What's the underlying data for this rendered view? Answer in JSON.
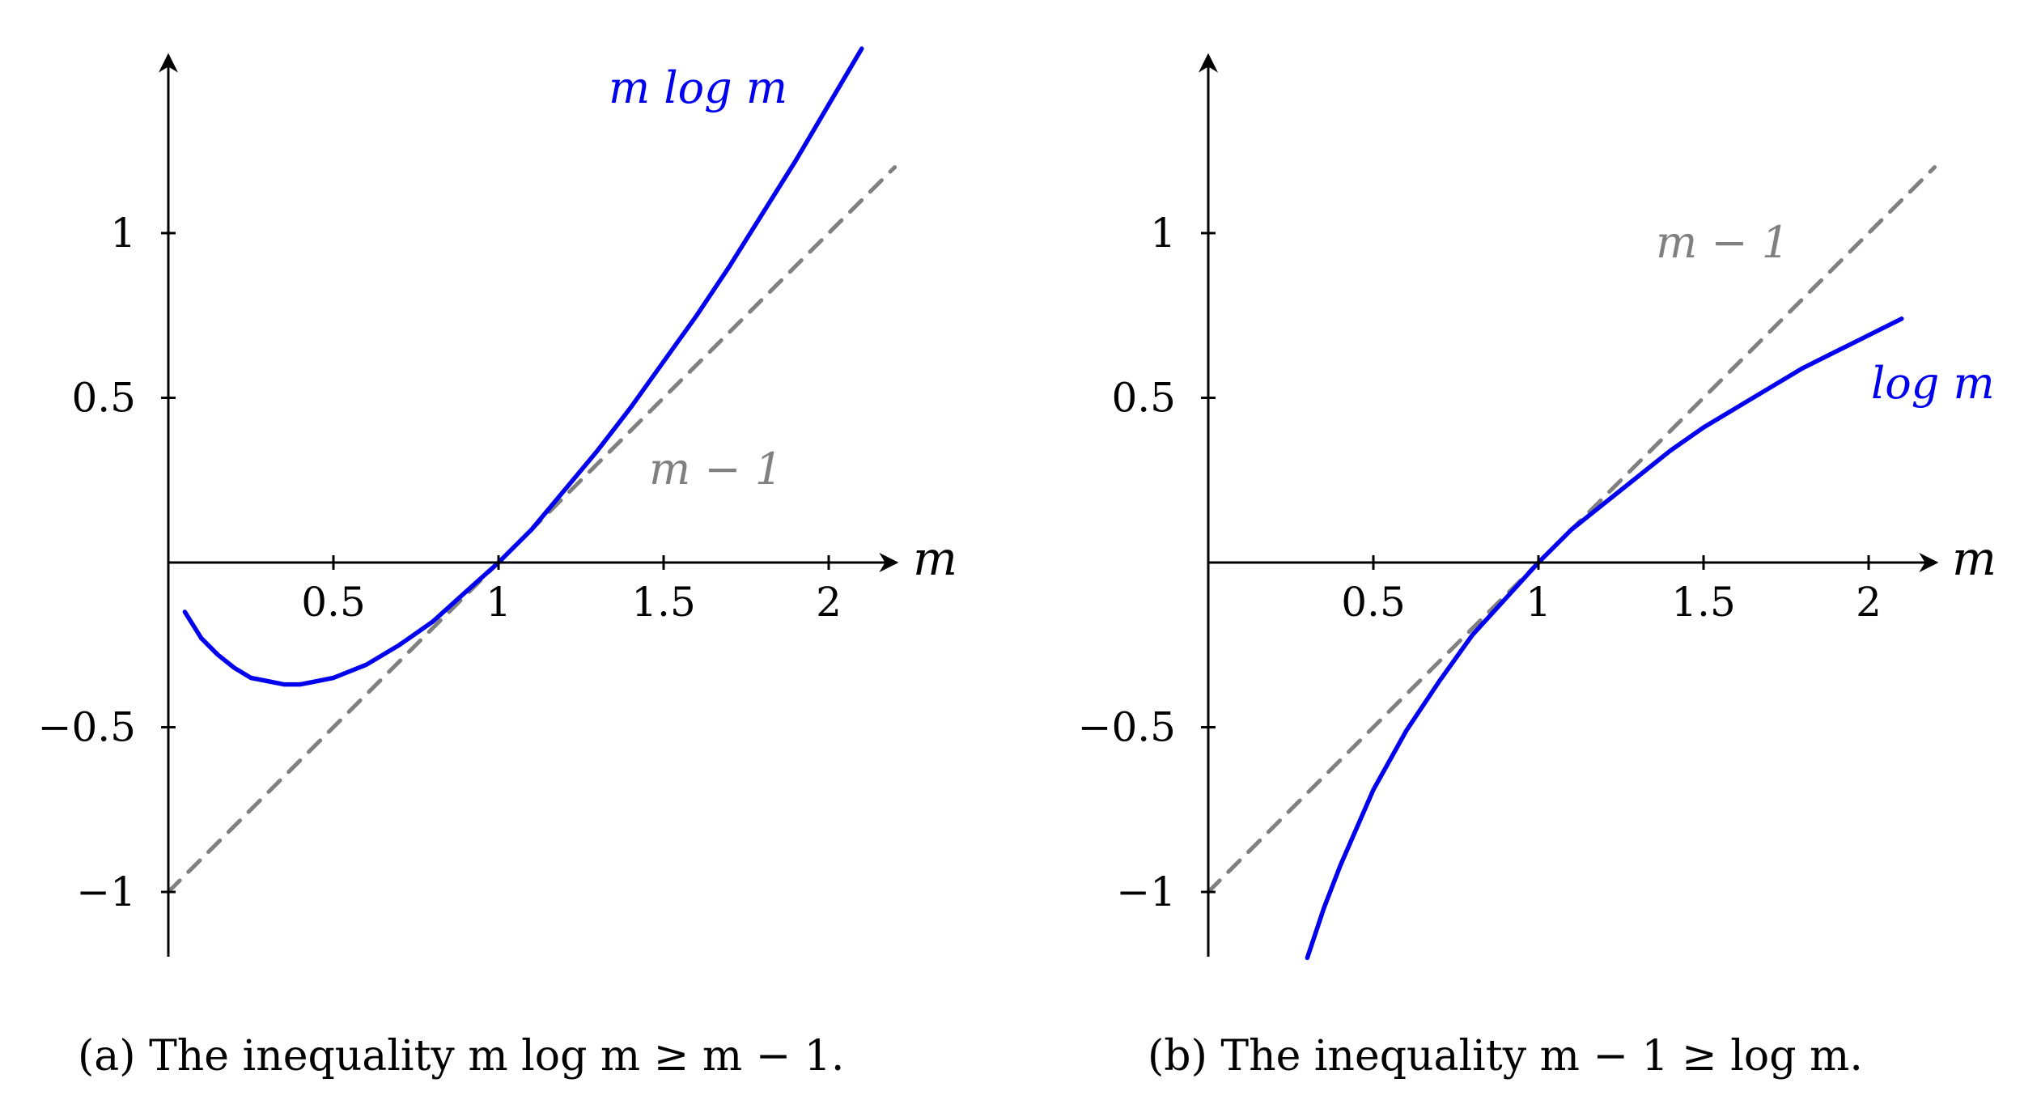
{
  "colors": {
    "curve": "#0000ee",
    "reference": "#808080",
    "axis": "#000000",
    "background": "#ffffff"
  },
  "chart_data": [
    {
      "type": "line",
      "caption": "(a) The inequality m log m ≥ m − 1.",
      "xlabel": "m",
      "ylabel": "",
      "xlim": [
        0,
        2.2
      ],
      "ylim": [
        -1.2,
        1.5
      ],
      "xticks": [
        0.5,
        1,
        1.5,
        2
      ],
      "xtick_labels": [
        "0.5",
        "1",
        "1.5",
        "2"
      ],
      "yticks": [
        1,
        0.5,
        -0.5,
        -1
      ],
      "ytick_labels": [
        "1",
        "0.5",
        "−0.5",
        "−1"
      ],
      "grid": false,
      "series": [
        {
          "name": "m log m",
          "style": "solid",
          "color": "#0000ee",
          "x": [
            0.05,
            0.1,
            0.15,
            0.2,
            0.25,
            0.3,
            0.35,
            0.4,
            0.5,
            0.6,
            0.7,
            0.8,
            0.9,
            1.0,
            1.1,
            1.2,
            1.3,
            1.4,
            1.5,
            1.6,
            1.7,
            1.8,
            1.9,
            2.0,
            2.1
          ],
          "y": [
            -0.15,
            -0.23,
            -0.28,
            -0.32,
            -0.35,
            -0.36,
            -0.37,
            -0.37,
            -0.35,
            -0.31,
            -0.25,
            -0.18,
            -0.09,
            0.0,
            0.1,
            0.22,
            0.34,
            0.47,
            0.61,
            0.75,
            0.9,
            1.06,
            1.22,
            1.39,
            1.56
          ]
        },
        {
          "name": "m − 1",
          "style": "dashed",
          "color": "#808080",
          "x": [
            0,
            2.2
          ],
          "y": [
            -1,
            1.2
          ]
        }
      ]
    },
    {
      "type": "line",
      "caption": "(b) The inequality m − 1 ≥ log m.",
      "xlabel": "m",
      "ylabel": "",
      "xlim": [
        0,
        2.2
      ],
      "ylim": [
        -1.2,
        1.5
      ],
      "xticks": [
        0.5,
        1,
        1.5,
        2
      ],
      "xtick_labels": [
        "0.5",
        "1",
        "1.5",
        "2"
      ],
      "yticks": [
        1,
        0.5,
        -0.5,
        -1
      ],
      "ytick_labels": [
        "1",
        "0.5",
        "−0.5",
        "−1"
      ],
      "grid": false,
      "series": [
        {
          "name": "log m",
          "style": "solid",
          "color": "#0000ee",
          "x": [
            0.3,
            0.35,
            0.4,
            0.5,
            0.6,
            0.7,
            0.8,
            0.9,
            1.0,
            1.1,
            1.2,
            1.3,
            1.4,
            1.5,
            1.6,
            1.7,
            1.8,
            1.9,
            2.0,
            2.1
          ],
          "y": [
            -1.2,
            -1.05,
            -0.92,
            -0.69,
            -0.51,
            -0.36,
            -0.22,
            -0.11,
            0.0,
            0.1,
            0.18,
            0.26,
            0.34,
            0.41,
            0.47,
            0.53,
            0.59,
            0.64,
            0.69,
            0.74
          ]
        },
        {
          "name": "m − 1",
          "style": "dashed",
          "color": "#808080",
          "x": [
            0,
            2.2
          ],
          "y": [
            -1,
            1.2
          ]
        }
      ]
    }
  ]
}
